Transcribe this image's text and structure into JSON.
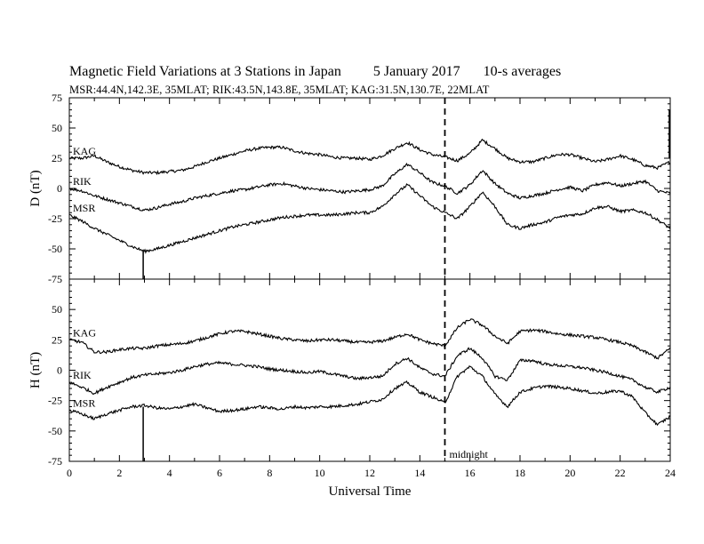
{
  "header": {
    "title": "Magnetic Field Variations at 3 Stations in Japan",
    "date": "5   January  2017",
    "averaging": "10-s averages",
    "stations_line": "MSR:44.4N,142.3E, 35MLAT;  RIK:43.5N,143.8E, 35MLAT;  KAG:31.5N,130.7E, 22MLAT"
  },
  "chart_data": [
    {
      "type": "line",
      "panel": "top",
      "ylabel": "D (nT)",
      "ylim": [
        -75,
        75
      ],
      "yticks": [
        "75",
        "50",
        "25",
        "0",
        "-25",
        "-50",
        "-75"
      ],
      "xlim": [
        0,
        24
      ],
      "grid": false,
      "legend": "inline labels at left",
      "series": [
        {
          "name": "KAG",
          "x": [
            0,
            0.5,
            1,
            1.5,
            2,
            2.5,
            3,
            3.5,
            4,
            4.5,
            5,
            5.5,
            6,
            6.5,
            7,
            7.5,
            8,
            8.5,
            9,
            9.5,
            10,
            10.5,
            11,
            11.5,
            12,
            12.5,
            13,
            13.5,
            14,
            14.5,
            15,
            15.5,
            16,
            16.5,
            17,
            17.5,
            18,
            18.5,
            19,
            19.5,
            20,
            20.5,
            21,
            21.5,
            22,
            22.5,
            23,
            23.5,
            24
          ],
          "values": [
            25,
            25,
            27,
            22,
            18,
            15,
            13,
            13,
            14,
            15,
            18,
            22,
            25,
            28,
            31,
            33,
            34,
            34,
            31,
            29,
            28,
            26,
            25,
            25,
            24,
            27,
            33,
            38,
            32,
            28,
            26,
            23,
            29,
            40,
            33,
            25,
            22,
            22,
            25,
            28,
            28,
            25,
            22,
            24,
            27,
            24,
            19,
            17,
            22
          ]
        },
        {
          "name": "RIK",
          "x": [
            0,
            0.5,
            1,
            1.5,
            2,
            2.5,
            3,
            3.5,
            4,
            4.5,
            5,
            5.5,
            6,
            6.5,
            7,
            7.5,
            8,
            8.5,
            9,
            9.5,
            10,
            10.5,
            11,
            11.5,
            12,
            12.5,
            13,
            13.5,
            14,
            14.5,
            15,
            15.5,
            16,
            16.5,
            17,
            17.5,
            18,
            18.5,
            19,
            19.5,
            20,
            20.5,
            21,
            21.5,
            22,
            22.5,
            23,
            23.5,
            24
          ],
          "values": [
            0,
            -2,
            -6,
            -9,
            -12,
            -15,
            -18,
            -16,
            -13,
            -11,
            -8,
            -6,
            -4,
            -2,
            -1,
            1,
            3,
            4,
            2,
            0,
            -1,
            -2,
            -3,
            -2,
            -1,
            2,
            12,
            20,
            13,
            5,
            2,
            -4,
            3,
            15,
            4,
            -4,
            -8,
            -6,
            -4,
            -1,
            1,
            -2,
            3,
            5,
            2,
            4,
            6,
            -2,
            -4
          ]
        },
        {
          "name": "MSR",
          "x": [
            0,
            0.5,
            1,
            1.5,
            2,
            2.5,
            3,
            3.5,
            4,
            4.5,
            5,
            5.5,
            6,
            6.5,
            7,
            7.5,
            8,
            8.5,
            9,
            9.5,
            10,
            10.5,
            11,
            11.5,
            12,
            12.5,
            13,
            13.5,
            14,
            14.5,
            15,
            15.5,
            16,
            16.5,
            17,
            17.5,
            18,
            18.5,
            19,
            19.5,
            20,
            20.5,
            21,
            21.5,
            22,
            22.5,
            23,
            23.5,
            24
          ],
          "values": [
            -22,
            -27,
            -33,
            -38,
            -43,
            -48,
            -52,
            -50,
            -47,
            -44,
            -41,
            -38,
            -35,
            -32,
            -30,
            -28,
            -26,
            -24,
            -23,
            -22,
            -22,
            -22,
            -21,
            -20,
            -20,
            -15,
            -5,
            3,
            -6,
            -15,
            -20,
            -25,
            -15,
            -3,
            -15,
            -30,
            -33,
            -30,
            -28,
            -24,
            -22,
            -21,
            -16,
            -15,
            -19,
            -18,
            -20,
            -26,
            -33
          ]
        }
      ]
    },
    {
      "type": "line",
      "panel": "bottom",
      "ylabel": "H (nT)",
      "ylim": [
        -75,
        75
      ],
      "yticks": [
        "50",
        "25",
        "0",
        "-25",
        "-50",
        "-75"
      ],
      "xlim": [
        0,
        24
      ],
      "xlabel": "Universal Time",
      "xticks": [
        "0",
        "2",
        "4",
        "6",
        "8",
        "10",
        "12",
        "14",
        "16",
        "18",
        "20",
        "22",
        "24"
      ],
      "grid": false,
      "annotation": "midnight",
      "series": [
        {
          "name": "KAG",
          "x": [
            0,
            0.5,
            1,
            1.5,
            2,
            2.5,
            3,
            3.5,
            4,
            4.5,
            5,
            5.5,
            6,
            6.5,
            7,
            7.5,
            8,
            8.5,
            9,
            9.5,
            10,
            10.5,
            11,
            11.5,
            12,
            12.5,
            13,
            13.5,
            14,
            14.5,
            15,
            15.5,
            16,
            16.5,
            17,
            17.5,
            18,
            18.5,
            19,
            19.5,
            20,
            20.5,
            21,
            21.5,
            22,
            22.5,
            23,
            23.5,
            24
          ],
          "values": [
            25,
            23,
            15,
            15,
            17,
            18,
            18,
            20,
            21,
            22,
            24,
            27,
            30,
            32,
            32,
            30,
            28,
            26,
            25,
            24,
            25,
            25,
            24,
            23,
            23,
            24,
            27,
            30,
            25,
            22,
            20,
            35,
            42,
            37,
            28,
            22,
            32,
            33,
            32,
            30,
            29,
            28,
            27,
            25,
            23,
            20,
            15,
            10,
            18
          ]
        },
        {
          "name": "RIK",
          "x": [
            0,
            0.5,
            1,
            1.5,
            2,
            2.5,
            3,
            3.5,
            4,
            4.5,
            5,
            5.5,
            6,
            6.5,
            7,
            7.5,
            8,
            8.5,
            9,
            9.5,
            10,
            10.5,
            11,
            11.5,
            12,
            12.5,
            13,
            13.5,
            14,
            14.5,
            15,
            15.5,
            16,
            16.5,
            17,
            17.5,
            18,
            18.5,
            19,
            19.5,
            20,
            20.5,
            21,
            21.5,
            22,
            22.5,
            23,
            23.5,
            24
          ],
          "values": [
            -10,
            -14,
            -19,
            -14,
            -10,
            -6,
            -4,
            -3,
            -2,
            0,
            3,
            5,
            6,
            5,
            4,
            3,
            1,
            0,
            -1,
            -2,
            -1,
            -3,
            -5,
            -7,
            -6,
            -5,
            5,
            10,
            2,
            -3,
            -5,
            12,
            18,
            10,
            -5,
            -8,
            8,
            8,
            5,
            4,
            3,
            2,
            0,
            -2,
            -5,
            -8,
            -14,
            -18,
            -14
          ]
        },
        {
          "name": "MSR",
          "x": [
            0,
            0.5,
            1,
            1.5,
            2,
            2.5,
            3,
            3.5,
            4,
            4.5,
            5,
            5.5,
            6,
            6.5,
            7,
            7.5,
            8,
            8.5,
            9,
            9.5,
            10,
            10.5,
            11,
            11.5,
            12,
            12.5,
            13,
            13.5,
            14,
            14.5,
            15,
            15.5,
            16,
            16.5,
            17,
            17.5,
            18,
            18.5,
            19,
            19.5,
            20,
            20.5,
            21,
            21.5,
            22,
            22.5,
            23,
            23.5,
            24
          ],
          "values": [
            -33,
            -36,
            -40,
            -36,
            -33,
            -30,
            -29,
            -31,
            -32,
            -30,
            -28,
            -31,
            -34,
            -33,
            -32,
            -30,
            -31,
            -32,
            -30,
            -31,
            -30,
            -30,
            -29,
            -28,
            -26,
            -24,
            -15,
            -10,
            -18,
            -22,
            -27,
            -5,
            3,
            -5,
            -20,
            -30,
            -18,
            -15,
            -13,
            -14,
            -15,
            -17,
            -19,
            -18,
            -17,
            -22,
            -35,
            -45,
            -38
          ]
        }
      ]
    }
  ]
}
